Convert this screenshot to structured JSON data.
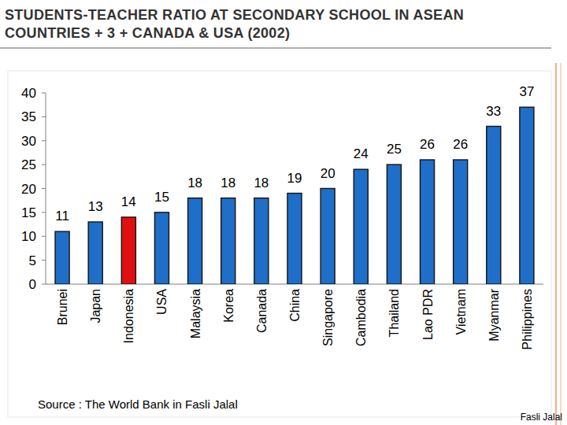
{
  "chart_data": {
    "type": "bar",
    "title": "STUDENTS-TEACHER RATIO AT SECONDARY SCHOOL IN ASEAN COUNTRIES + 3 + CANADA & USA (2002)",
    "categories": [
      "Brunei",
      "Japan",
      "Indonesia",
      "USA",
      "Malaysia",
      "Korea",
      "Canada",
      "China",
      "Singapore",
      "Cambodia",
      "Thailand",
      "Lao PDR",
      "Vietnam",
      "Myanmar",
      "Philippines"
    ],
    "values": [
      11,
      13,
      14,
      15,
      18,
      18,
      18,
      19,
      20,
      24,
      25,
      26,
      26,
      33,
      37
    ],
    "colors": [
      "#1f6fc8",
      "#1f6fc8",
      "#e01010",
      "#1f6fc8",
      "#1f6fc8",
      "#1f6fc8",
      "#1f6fc8",
      "#1f6fc8",
      "#1f6fc8",
      "#1f6fc8",
      "#1f6fc8",
      "#1f6fc8",
      "#1f6fc8",
      "#1f6fc8",
      "#1f6fc8"
    ],
    "ylim": [
      0,
      40
    ],
    "yticks": [
      0,
      5,
      10,
      15,
      20,
      25,
      30,
      35,
      40
    ],
    "grid": false,
    "data_labels": true,
    "annotations": [
      "Source : The World Bank in Fasli Jalal",
      "Fasli Jalal"
    ]
  }
}
